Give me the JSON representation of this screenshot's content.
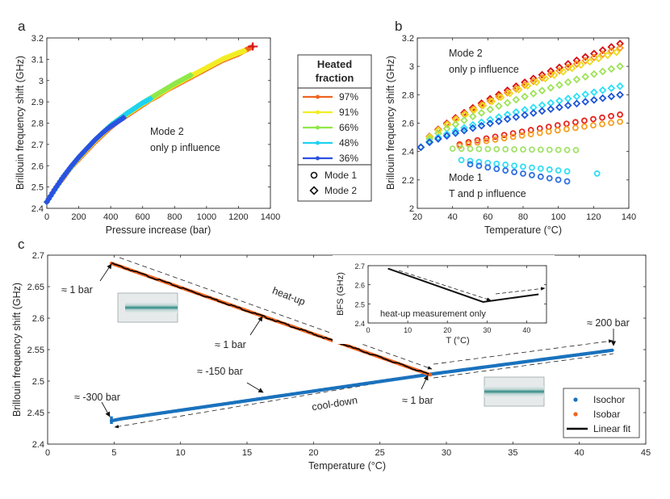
{
  "panels": {
    "a": "a",
    "b": "b",
    "c": "c"
  },
  "colors": {
    "m97": "#ef6420",
    "m91": "#f2ed24",
    "m66": "#8fe84a",
    "m48": "#1fd3f0",
    "m36": "#2a52e0",
    "r_red": "#e8251f",
    "r_orange": "#f5a023",
    "r_green": "#a2e26a",
    "r_cyan": "#33ddf2",
    "r_blue": "#2f6fe0",
    "d_red": "#d70f12",
    "d_orange": "#ff9a22",
    "d_yellow": "#ecdc1f",
    "d_green": "#9fe35a",
    "d_cyan": "#2ee0f5",
    "d_blue": "#1f56d8",
    "isochor": "#1a72bd",
    "isobar": "#ef6420",
    "fit": "#000000"
  },
  "legend_mid": {
    "title_line1": "Heated",
    "title_line2": "fraction",
    "items": [
      {
        "label": "97%",
        "color": "#ef6420"
      },
      {
        "label": "91%",
        "color": "#f2ed24"
      },
      {
        "label": "66%",
        "color": "#8fe84a"
      },
      {
        "label": "48%",
        "color": "#1fd3f0"
      },
      {
        "label": "36%",
        "color": "#2a52e0"
      }
    ],
    "mode_items": [
      {
        "label": "Mode 1",
        "marker": "circle"
      },
      {
        "label": "Mode 2",
        "marker": "diamond"
      }
    ]
  },
  "chart_data": [
    {
      "id": "a",
      "type": "scatter",
      "xlabel": "Pressure increase (bar)",
      "ylabel": "Brillouin frequency shift (GHz)",
      "xlim": [
        0,
        1400
      ],
      "ylim": [
        2.4,
        3.2
      ],
      "xticks": [
        0,
        200,
        400,
        600,
        800,
        1000,
        1200,
        1400
      ],
      "yticks": [
        2.4,
        2.5,
        2.6,
        2.7,
        2.8,
        2.9,
        3.0,
        3.1,
        3.2
      ],
      "xtick_labels": [
        "0",
        "200",
        "400",
        "600",
        "800",
        "1000",
        "1200",
        "1400"
      ],
      "ytick_labels": [
        "2.4",
        "2.5",
        "2.6",
        "2.7",
        "2.8",
        "2.9",
        "3",
        "3.1",
        "3.2"
      ],
      "annotation_line1": "Mode 2",
      "annotation_line2": "only p influence",
      "series": [
        {
          "name": "97%",
          "color_key": "m97",
          "x": [
            0,
            50,
            100,
            150,
            200,
            250,
            300,
            350,
            400,
            450,
            500,
            550,
            600,
            650,
            700,
            750,
            800,
            850,
            900,
            950,
            1000,
            1050,
            1100,
            1150,
            1200,
            1250,
            1290
          ],
          "y": [
            2.43,
            2.49,
            2.54,
            2.59,
            2.63,
            2.67,
            2.71,
            2.745,
            2.78,
            2.81,
            2.835,
            2.86,
            2.885,
            2.91,
            2.93,
            2.955,
            2.975,
            2.995,
            3.015,
            3.035,
            3.055,
            3.075,
            3.095,
            3.11,
            3.125,
            3.145,
            3.16
          ]
        },
        {
          "name": "91%",
          "color_key": "m91",
          "x": [
            0,
            100,
            200,
            300,
            400,
            500,
            600,
            700,
            800,
            900,
            1000,
            1100,
            1200,
            1240
          ],
          "y": [
            2.43,
            2.545,
            2.635,
            2.715,
            2.785,
            2.84,
            2.89,
            2.935,
            2.98,
            3.02,
            3.06,
            3.1,
            3.13,
            3.14
          ]
        },
        {
          "name": "66%",
          "color_key": "m66",
          "x": [
            0,
            100,
            200,
            300,
            400,
            500,
            600,
            700,
            800,
            900
          ],
          "y": [
            2.43,
            2.545,
            2.64,
            2.72,
            2.79,
            2.845,
            2.895,
            2.94,
            2.985,
            3.025
          ]
        },
        {
          "name": "48%",
          "color_key": "m48",
          "x": [
            0,
            100,
            200,
            300,
            400,
            500,
            600,
            650
          ],
          "y": [
            2.43,
            2.545,
            2.64,
            2.72,
            2.79,
            2.845,
            2.895,
            2.915
          ]
        },
        {
          "name": "36%",
          "color_key": "m36",
          "x": [
            0,
            50,
            100,
            150,
            200,
            250,
            300,
            350,
            400,
            450,
            480
          ],
          "y": [
            2.43,
            2.49,
            2.545,
            2.595,
            2.64,
            2.68,
            2.72,
            2.755,
            2.785,
            2.81,
            2.825
          ]
        }
      ]
    },
    {
      "id": "b",
      "type": "scatter",
      "xlabel": "Temperature (°C)",
      "ylabel": "Brillouin frequency shift (GHz)",
      "xlim": [
        20,
        140
      ],
      "ylim": [
        2.0,
        3.2
      ],
      "xticks": [
        20,
        40,
        60,
        80,
        100,
        120,
        140
      ],
      "yticks": [
        2.0,
        2.2,
        2.4,
        2.6,
        2.8,
        3.0,
        3.2
      ],
      "xtick_labels": [
        "20",
        "40",
        "60",
        "80",
        "100",
        "120",
        "140"
      ],
      "ytick_labels": [
        "2",
        "2.2",
        "2.4",
        "2.6",
        "2.8",
        "3",
        "3.2"
      ],
      "annotation_top_line1": "Mode 2",
      "annotation_top_line2": "only p influence",
      "annotation_bottom_line1": "Mode 1",
      "annotation_bottom_line2": "T and p influence",
      "series": [
        {
          "name": "Mode 2 red",
          "marker": "diamond",
          "color_key": "d_red",
          "x0": 22,
          "x1": 135,
          "y0": 2.43,
          "y1": 3.16,
          "exp": 0.72,
          "n": 24
        },
        {
          "name": "Mode 2 orange",
          "marker": "diamond",
          "color_key": "d_orange",
          "x0": 22,
          "x1": 135,
          "y0": 2.43,
          "y1": 3.13,
          "exp": 0.72,
          "n": 24
        },
        {
          "name": "Mode 2 yellow",
          "marker": "diamond",
          "color_key": "d_yellow",
          "x0": 22,
          "x1": 133,
          "y0": 2.43,
          "y1": 3.1,
          "exp": 0.72,
          "n": 23
        },
        {
          "name": "Mode 2 green",
          "marker": "diamond",
          "color_key": "d_green",
          "x0": 22,
          "x1": 135,
          "y0": 2.43,
          "y1": 3.0,
          "exp": 0.72,
          "n": 24
        },
        {
          "name": "Mode 2 cyan",
          "marker": "diamond",
          "color_key": "d_cyan",
          "x0": 22,
          "x1": 135,
          "y0": 2.43,
          "y1": 2.86,
          "exp": 0.75,
          "n": 24
        },
        {
          "name": "Mode 2 blue",
          "marker": "diamond",
          "color_key": "d_blue",
          "x0": 22,
          "x1": 135,
          "y0": 2.43,
          "y1": 2.8,
          "exp": 0.75,
          "n": 24
        },
        {
          "name": "Mode 1 red",
          "marker": "circle",
          "color_key": "r_red",
          "x0": 44,
          "x1": 135,
          "y0": 2.45,
          "y1": 2.66,
          "exp": 0.9,
          "n": 19
        },
        {
          "name": "Mode 1 orange",
          "marker": "circle",
          "color_key": "r_orange",
          "x0": 44,
          "x1": 135,
          "y0": 2.44,
          "y1": 2.61,
          "exp": 0.9,
          "n": 19
        },
        {
          "name": "Mode 1 green",
          "marker": "circle",
          "color_key": "r_green",
          "x0": 40,
          "x1": 110,
          "y0": 2.42,
          "y1": 2.41,
          "exp": 1.0,
          "n": 15
        },
        {
          "name": "Mode 1 cyan",
          "marker": "circle",
          "color_key": "r_cyan",
          "x0": 45,
          "x1": 105,
          "y0": 2.34,
          "y1": 2.26,
          "exp": 1.0,
          "n": 13
        },
        {
          "name": "Mode 1 blue",
          "marker": "circle",
          "color_key": "r_blue",
          "x0": 50,
          "x1": 105,
          "y0": 2.31,
          "y1": 2.19,
          "exp": 1.0,
          "n": 12
        },
        {
          "name": "Mode 1 cyan outlier",
          "marker": "circle",
          "color_key": "r_cyan",
          "x0": 122,
          "x1": 122,
          "y0": 2.245,
          "y1": 2.245,
          "exp": 1.0,
          "n": 1
        }
      ]
    },
    {
      "id": "c",
      "type": "line",
      "xlabel": "Temperature (°C)",
      "ylabel": "Brillouin frequency shift (GHz)",
      "xlim": [
        0,
        45
      ],
      "ylim": [
        2.4,
        2.7
      ],
      "xticks": [
        0,
        5,
        10,
        15,
        20,
        25,
        30,
        35,
        40,
        45
      ],
      "yticks": [
        2.4,
        2.45,
        2.5,
        2.55,
        2.6,
        2.65,
        2.7
      ],
      "xtick_labels": [
        "0",
        "5",
        "10",
        "15",
        "20",
        "25",
        "30",
        "35",
        "40",
        "45"
      ],
      "ytick_labels": [
        "2.4",
        "2.45",
        "2.5",
        "2.55",
        "2.6",
        "2.65",
        "2.7"
      ],
      "series": [
        {
          "name": "Isobar",
          "color_key": "isobar",
          "x": [
            4.8,
            28.8
          ],
          "y": [
            2.687,
            2.51
          ]
        },
        {
          "name": "Isochor",
          "color_key": "isochor",
          "x": [
            4.8,
            5.5,
            28.8,
            42.5
          ],
          "y": [
            2.437,
            2.44,
            2.511,
            2.549
          ]
        },
        {
          "name": "Linear fit",
          "color_key": "fit",
          "x": [
            4.8,
            28.8
          ],
          "y": [
            2.687,
            2.51
          ]
        }
      ],
      "legend": [
        {
          "label": "Isochor",
          "color_key": "isochor",
          "style": "dot"
        },
        {
          "label": "Isobar",
          "color_key": "isobar",
          "style": "dot"
        },
        {
          "label": "Linear fit",
          "color_key": "fit",
          "style": "line"
        }
      ],
      "annotations": {
        "p1bar_start": "≈ 1 bar",
        "heatup": "heat-up",
        "p1bar_mid": "≈ 1 bar",
        "m150": "≈ -150 bar",
        "m300": "≈ -300 bar",
        "cooldown": "cool-down",
        "p1bar_end": "≈ 1 bar",
        "p200": "≈ 200 bar"
      },
      "inset": {
        "ylabel": "BFS (GHz)",
        "xlabel": "T (°C)",
        "note": "heat-up measurement only",
        "xlim": [
          0,
          45
        ],
        "ylim": [
          2.4,
          2.7
        ],
        "xticks": [
          0,
          10,
          20,
          30,
          40
        ],
        "yticks": [
          2.4,
          2.5,
          2.6,
          2.7
        ],
        "xtick_labels": [
          "0",
          "10",
          "20",
          "30",
          "40"
        ],
        "ytick_labels": [
          "2.4",
          "2.5",
          "2.6",
          "2.7"
        ],
        "x": [
          5,
          29,
          43
        ],
        "y": [
          2.685,
          2.51,
          2.55
        ]
      }
    }
  ]
}
